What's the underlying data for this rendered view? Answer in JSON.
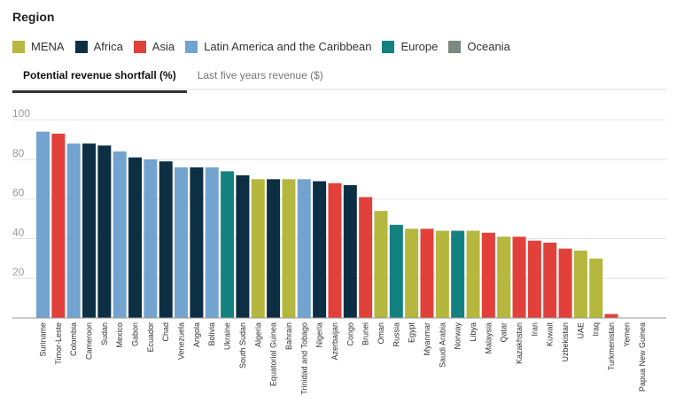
{
  "legend": {
    "title": "Region",
    "items": [
      {
        "label": "MENA",
        "color": "#b5b73e"
      },
      {
        "label": "Africa",
        "color": "#0d2f44"
      },
      {
        "label": "Asia",
        "color": "#e2413b"
      },
      {
        "label": "Latin America and the Caribbean",
        "color": "#73a3cf"
      },
      {
        "label": "Europe",
        "color": "#13817f"
      },
      {
        "label": "Oceania",
        "color": "#7b8882"
      }
    ]
  },
  "tabs": [
    {
      "label": "Potential revenue shortfall (%)",
      "active": true
    },
    {
      "label": "Last five years revenue ($)",
      "active": false
    }
  ],
  "chart_data": {
    "type": "bar",
    "categories": [
      "Suriname",
      "Timor-Leste",
      "Colombia",
      "Cameroon",
      "Sudan",
      "Mexico",
      "Gabon",
      "Ecuador",
      "Chad",
      "Venezuela",
      "Angola",
      "Bolivia",
      "Ukraine",
      "South Sudan",
      "Algeria",
      "Equatorial Guinea",
      "Bahrain",
      "Trinidad and Tobago",
      "Nigeria",
      "Azerbaijan",
      "Congo",
      "Brunei",
      "Oman",
      "Russia",
      "Egypt",
      "Myanmar",
      "Saudi Arabia",
      "Norway",
      "Libya",
      "Malaysia",
      "Qatar",
      "Kazakhstan",
      "Iran",
      "Kuwait",
      "Uzbekistan",
      "UAE",
      "Iraq",
      "Turkmenistan",
      "Yemen",
      "Papua New Guinea"
    ],
    "values": [
      94,
      93,
      88,
      88,
      87,
      84,
      81,
      80,
      79,
      76,
      76,
      76,
      74,
      72,
      70,
      70,
      70,
      70,
      69,
      68,
      67,
      61,
      54,
      47,
      45,
      45,
      44,
      44,
      44,
      43,
      41,
      41,
      39,
      38,
      35,
      34,
      30,
      2,
      0,
      0
    ],
    "regions": [
      "Latin America and the Caribbean",
      "Asia",
      "Latin America and the Caribbean",
      "Africa",
      "Africa",
      "Latin America and the Caribbean",
      "Africa",
      "Latin America and the Caribbean",
      "Africa",
      "Latin America and the Caribbean",
      "Africa",
      "Latin America and the Caribbean",
      "Europe",
      "Africa",
      "MENA",
      "Africa",
      "MENA",
      "Latin America and the Caribbean",
      "Africa",
      "Asia",
      "Africa",
      "Asia",
      "MENA",
      "Europe",
      "MENA",
      "Asia",
      "MENA",
      "Europe",
      "MENA",
      "Asia",
      "MENA",
      "Asia",
      "Asia",
      "Asia",
      "Asia",
      "MENA",
      "MENA",
      "Asia",
      "MENA",
      "Oceania"
    ],
    "yticks": [
      20,
      40,
      60,
      80,
      100
    ],
    "ylim": [
      0,
      105
    ],
    "grid": true,
    "legend_position": "top"
  }
}
